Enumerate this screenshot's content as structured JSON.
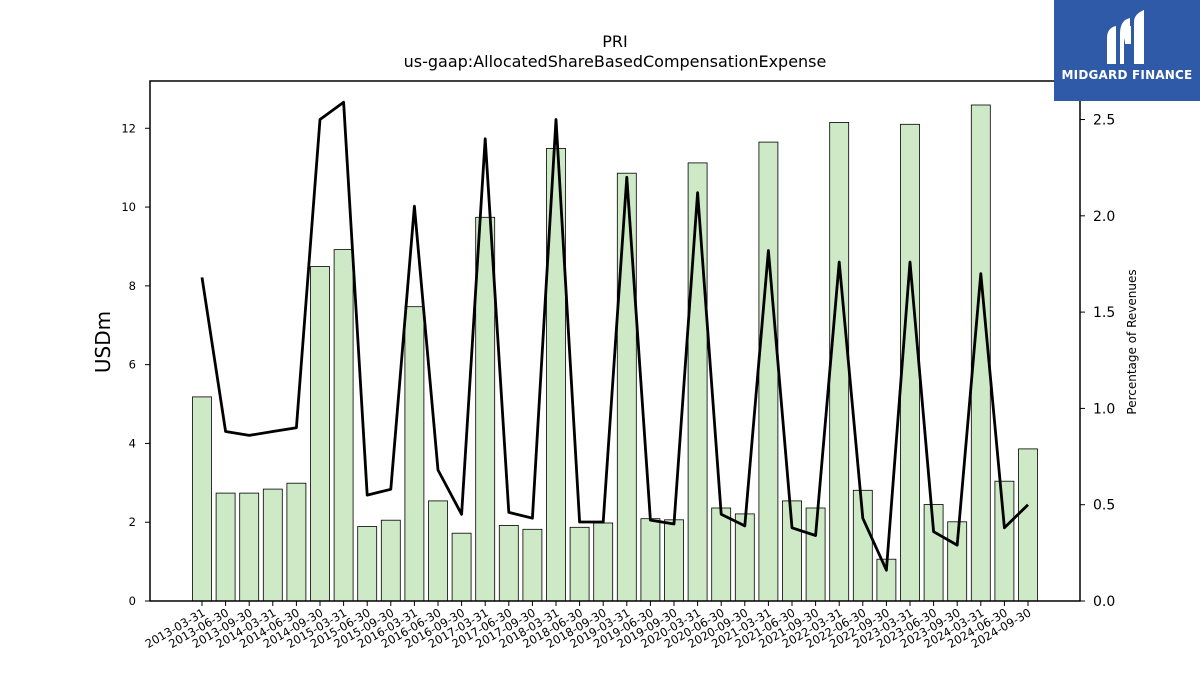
{
  "chart_data": {
    "type": "bar",
    "title": "PRI",
    "subtitle": "us-gaap:AllocatedShareBasedCompensationExpense",
    "ylabel": "USDm",
    "y2label": "Percentage of Revenues",
    "ylim": [
      0,
      13.2
    ],
    "y2lim": [
      0,
      2.7
    ],
    "yticks": [
      "0",
      "2",
      "4",
      "6",
      "8",
      "10",
      "12"
    ],
    "y2ticks": [
      "0.0",
      "0.5",
      "1.0",
      "1.5",
      "2.0",
      "2.5"
    ],
    "categories": [
      "2013-03-31",
      "2013-06-30",
      "2013-09-30",
      "2014-03-31",
      "2014-06-30",
      "2014-09-30",
      "2015-03-31",
      "2015-06-30",
      "2015-09-30",
      "2016-03-31",
      "2016-06-30",
      "2016-09-30",
      "2017-03-31",
      "2017-06-30",
      "2017-09-30",
      "2018-03-31",
      "2018-06-30",
      "2018-09-30",
      "2019-03-31",
      "2019-06-30",
      "2019-09-30",
      "2020-03-31",
      "2020-06-30",
      "2020-09-30",
      "2021-03-31",
      "2021-06-30",
      "2021-09-30",
      "2022-03-31",
      "2022-06-30",
      "2022-09-30",
      "2023-03-31",
      "2023-06-30",
      "2023-09-30",
      "2024-03-31",
      "2024-06-30",
      "2024-09-30"
    ],
    "bar_values": [
      5.18,
      2.74,
      2.74,
      2.84,
      2.99,
      8.49,
      8.92,
      1.89,
      2.05,
      7.47,
      2.54,
      1.72,
      9.74,
      1.92,
      1.82,
      11.49,
      1.87,
      1.98,
      10.86,
      2.09,
      2.06,
      11.12,
      2.36,
      2.21,
      11.65,
      2.54,
      2.36,
      12.15,
      2.81,
      1.06,
      12.1,
      2.45,
      2.01,
      12.59,
      3.04,
      3.86
    ],
    "line_values": [
      1.68,
      0.88,
      0.86,
      0.88,
      0.9,
      2.5,
      2.59,
      0.55,
      0.58,
      2.05,
      0.68,
      0.45,
      2.4,
      0.46,
      0.43,
      2.5,
      0.41,
      0.41,
      2.2,
      0.42,
      0.4,
      2.12,
      0.45,
      0.39,
      1.82,
      0.38,
      0.34,
      1.76,
      0.43,
      0.16,
      1.76,
      0.36,
      0.29,
      1.7,
      0.38,
      0.5
    ],
    "colors": {
      "bar_fill": "#cde9c6",
      "bar_edge": "#000000",
      "line": "#000000"
    },
    "grid": false
  },
  "logo": {
    "text": "MIDGARD FINANCE",
    "background": "#2f5aa8"
  }
}
